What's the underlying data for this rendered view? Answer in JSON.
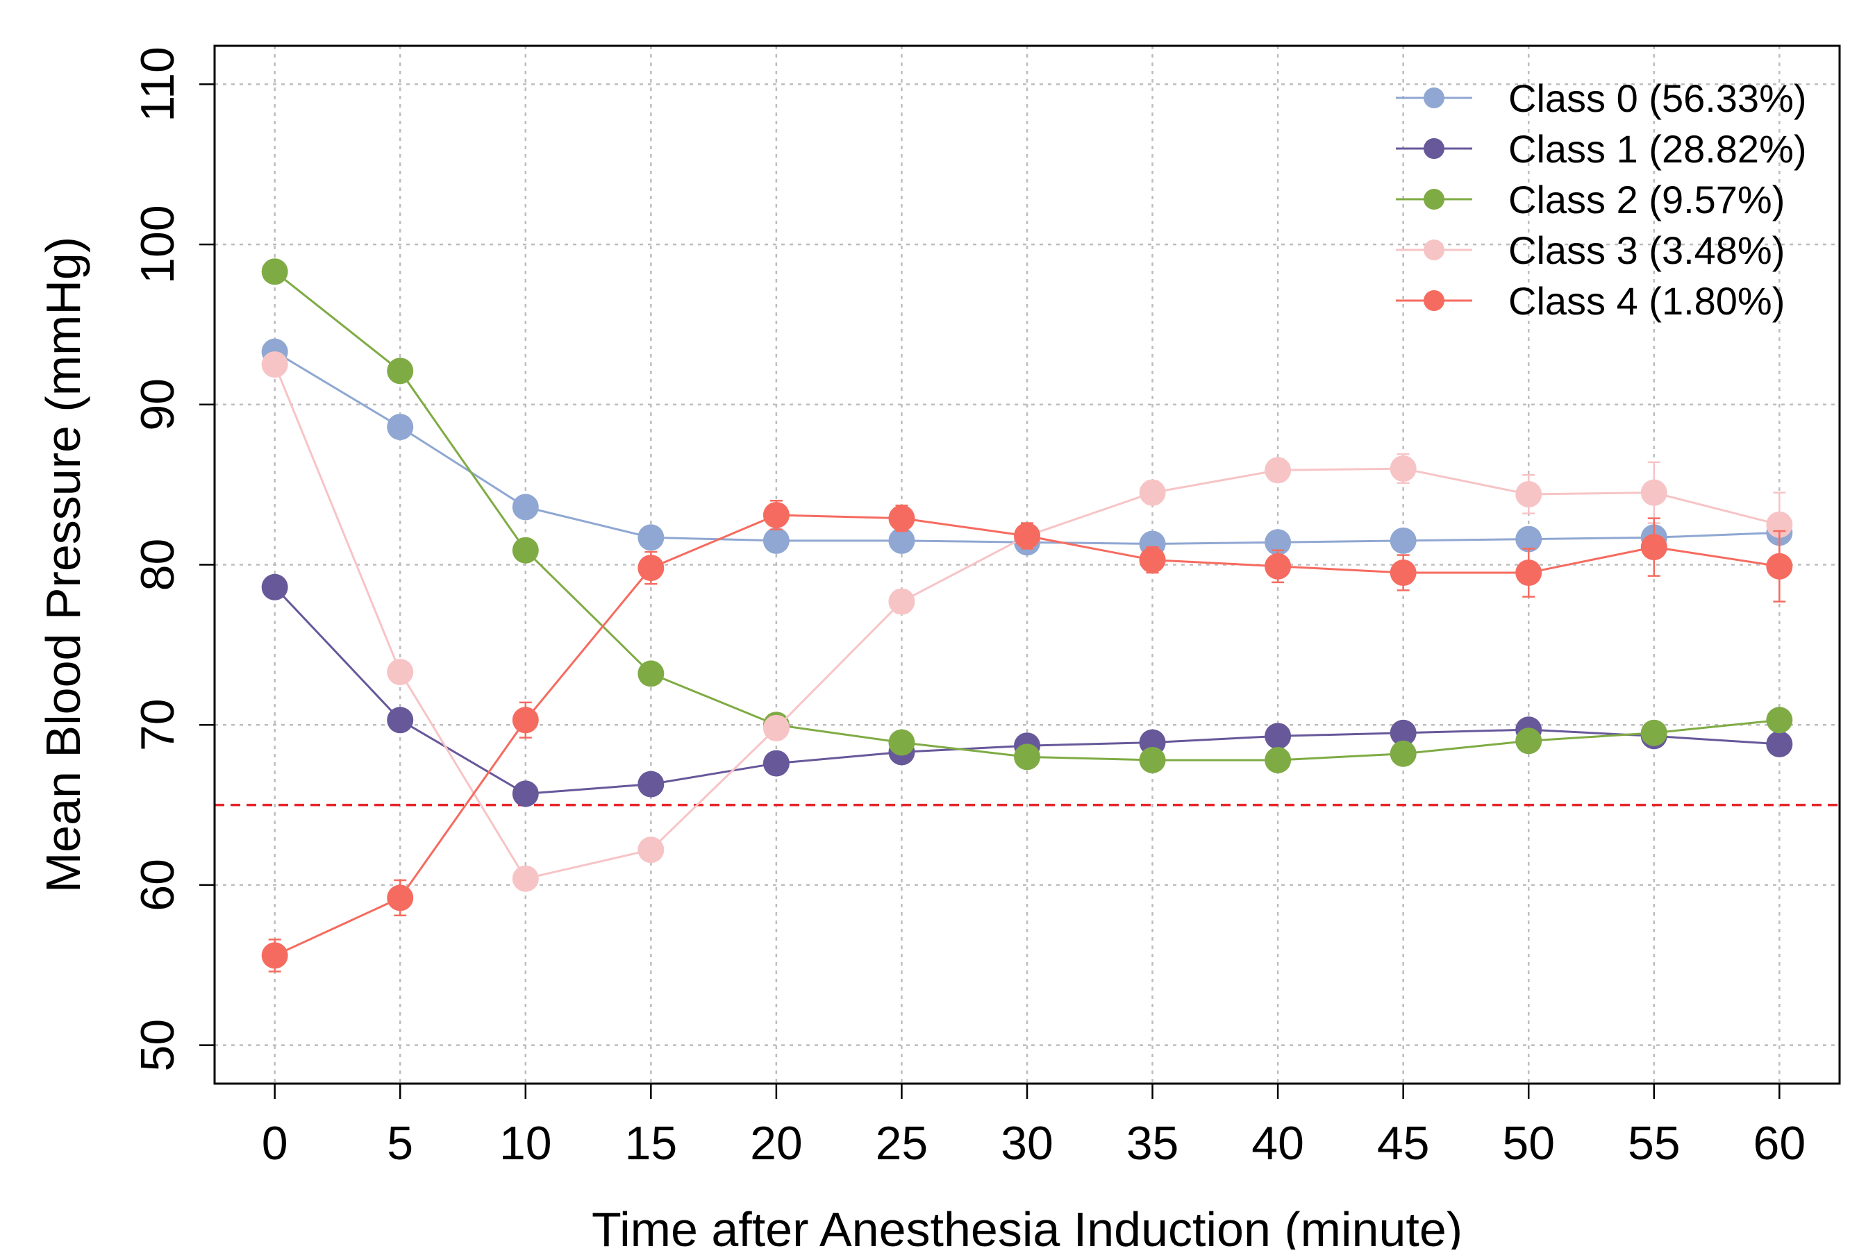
{
  "chart_data": {
    "type": "line",
    "title": "",
    "xlabel": "Time after Anesthesia Induction (minute)",
    "ylabel": "Mean Blood Pressure (mmHg)",
    "xlim": [
      -2.4,
      62.4
    ],
    "ylim": [
      47.6,
      112.4
    ],
    "x": [
      0,
      5,
      10,
      15,
      20,
      25,
      30,
      35,
      40,
      45,
      50,
      55,
      60
    ],
    "x_ticks": [
      "0",
      "5",
      "10",
      "15",
      "20",
      "25",
      "30",
      "35",
      "40",
      "45",
      "50",
      "55",
      "60"
    ],
    "y_ticks": [
      "50",
      "60",
      "70",
      "80",
      "90",
      "100",
      "110"
    ],
    "grid": true,
    "legend_position": "top-right",
    "reference_line": {
      "y": 65,
      "color": "#e8262a",
      "style": "dashed"
    },
    "series": [
      {
        "name": "Class 0 (56.33%)",
        "color": "#8fa7d2",
        "values": [
          93.3,
          88.6,
          83.6,
          81.7,
          81.5,
          81.5,
          81.4,
          81.3,
          81.4,
          81.5,
          81.6,
          81.7,
          82.0
        ],
        "error": [
          0.2,
          0.2,
          0.2,
          0.2,
          0.2,
          0.2,
          0.2,
          0.2,
          0.2,
          0.2,
          0.2,
          0.2,
          0.2
        ]
      },
      {
        "name": "Class 1 (28.82%)",
        "color": "#67589a",
        "values": [
          78.6,
          70.3,
          65.7,
          66.3,
          67.6,
          68.3,
          68.7,
          68.9,
          69.3,
          69.5,
          69.7,
          69.3,
          68.8
        ],
        "error": [
          0.2,
          0.2,
          0.2,
          0.2,
          0.2,
          0.2,
          0.2,
          0.2,
          0.2,
          0.2,
          0.2,
          0.2,
          0.2
        ]
      },
      {
        "name": "Class 2 (9.57%)",
        "color": "#7fab44",
        "values": [
          98.3,
          92.1,
          80.9,
          73.2,
          70.0,
          68.9,
          68.0,
          67.8,
          67.8,
          68.2,
          69.0,
          69.5,
          70.3
        ],
        "error": [
          0.3,
          0.3,
          0.3,
          0.3,
          0.3,
          0.3,
          0.3,
          0.3,
          0.3,
          0.3,
          0.3,
          0.3,
          0.3
        ]
      },
      {
        "name": "Class 3 (3.48%)",
        "color": "#f7c4c6",
        "values": [
          92.5,
          73.3,
          60.4,
          62.2,
          69.8,
          77.7,
          81.8,
          84.5,
          85.9,
          86.0,
          84.4,
          84.5,
          82.5
        ],
        "error": [
          0.5,
          0.5,
          0.5,
          0.6,
          0.7,
          0.7,
          0.7,
          0.7,
          0.7,
          0.9,
          1.2,
          1.9,
          2.0
        ]
      },
      {
        "name": "Class 4 (1.80%)",
        "color": "#f66b5f",
        "values": [
          55.6,
          59.2,
          70.3,
          79.8,
          83.1,
          82.9,
          81.8,
          80.3,
          79.9,
          79.5,
          79.5,
          81.1,
          79.9
        ],
        "error": [
          1.0,
          1.1,
          1.1,
          1.0,
          0.9,
          0.8,
          0.8,
          0.8,
          1.0,
          1.1,
          1.5,
          1.8,
          2.2
        ]
      }
    ]
  }
}
